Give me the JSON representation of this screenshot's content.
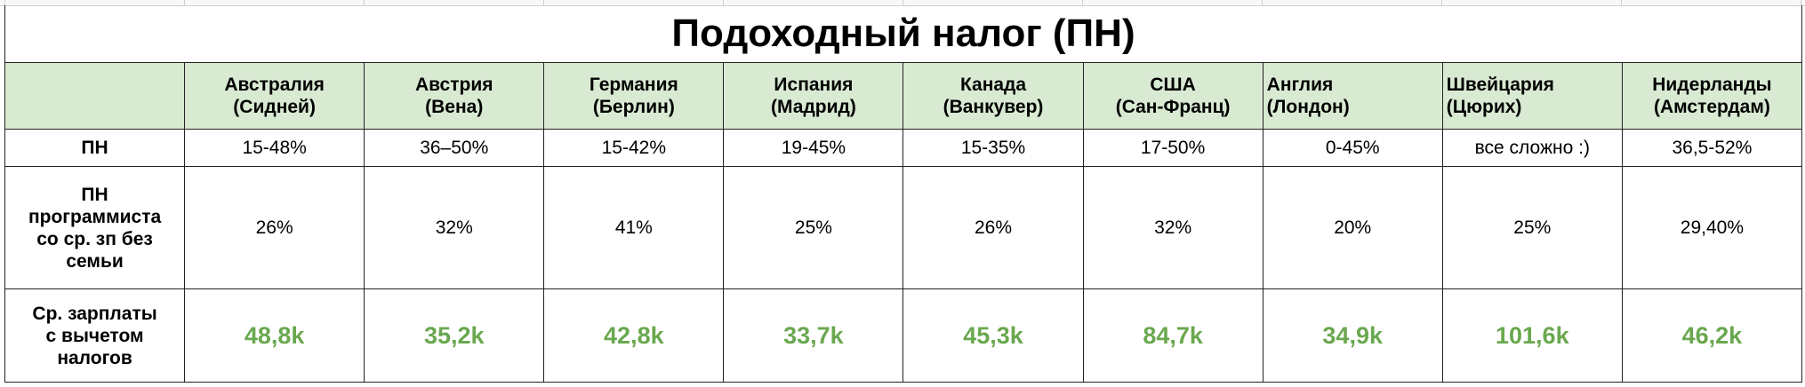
{
  "title": "Подоходный налог (ПН)",
  "columns": [
    {
      "country": "Австралия",
      "city": "(Сидней)"
    },
    {
      "country": "Австрия",
      "city": "(Вена)"
    },
    {
      "country": "Германия",
      "city": "(Берлин)"
    },
    {
      "country": "Испания",
      "city": "(Мадрид)"
    },
    {
      "country": "Канада",
      "city": "(Ванкувер)"
    },
    {
      "country": "США",
      "city": "(Сан-Франц)"
    },
    {
      "country": "Англия",
      "city": "(Лондон)"
    },
    {
      "country": "Швейцария",
      "city": "(Цюрих)"
    },
    {
      "country": "Нидерланды",
      "city": "(Амстердам)"
    }
  ],
  "rows": [
    {
      "label": [
        "ПН"
      ],
      "cells": [
        "15-48%",
        "36–50%",
        "15-42%",
        "19-45%",
        "15-35%",
        "17-50%",
        "0-45%",
        "все сложно :)",
        "36,5-52%"
      ]
    },
    {
      "label": [
        "ПН",
        "программиста",
        "со ср. зп без",
        "семьи"
      ],
      "cells": [
        "26%",
        "32%",
        "41%",
        "25%",
        "26%",
        "32%",
        "20%",
        "25%",
        "29,40%"
      ]
    },
    {
      "label": [
        "Ср. зарплаты",
        "с вычетом",
        "налогов"
      ],
      "cells": [
        "48,8k",
        "35,2k",
        "42,8k",
        "33,7k",
        "45,3k",
        "84,7k",
        "34,9k",
        "101,6k",
        "46,2k"
      ]
    }
  ]
}
